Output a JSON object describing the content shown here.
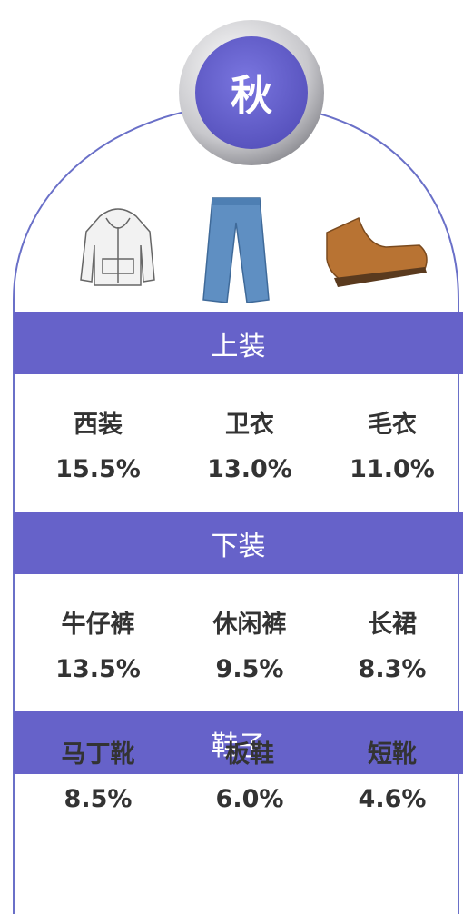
{
  "title": "秋",
  "sections": [
    {
      "header": "上装",
      "items": [
        {
          "name": "西装",
          "value": "15.5%"
        },
        {
          "name": "卫衣",
          "value": "13.0%"
        },
        {
          "name": "毛衣",
          "value": "11.0%"
        }
      ]
    },
    {
      "header": "下装",
      "items": [
        {
          "name": "牛仔裤",
          "value": "13.5%"
        },
        {
          "name": "休闲裤",
          "value": "9.5%"
        },
        {
          "name": "长裙",
          "value": "8.3%"
        }
      ]
    },
    {
      "header": "鞋子",
      "items": [
        {
          "name": "马丁靴",
          "value": "8.5%"
        },
        {
          "name": "板鞋",
          "value": "6.0%"
        },
        {
          "name": "短靴",
          "value": "4.6%"
        }
      ]
    }
  ]
}
